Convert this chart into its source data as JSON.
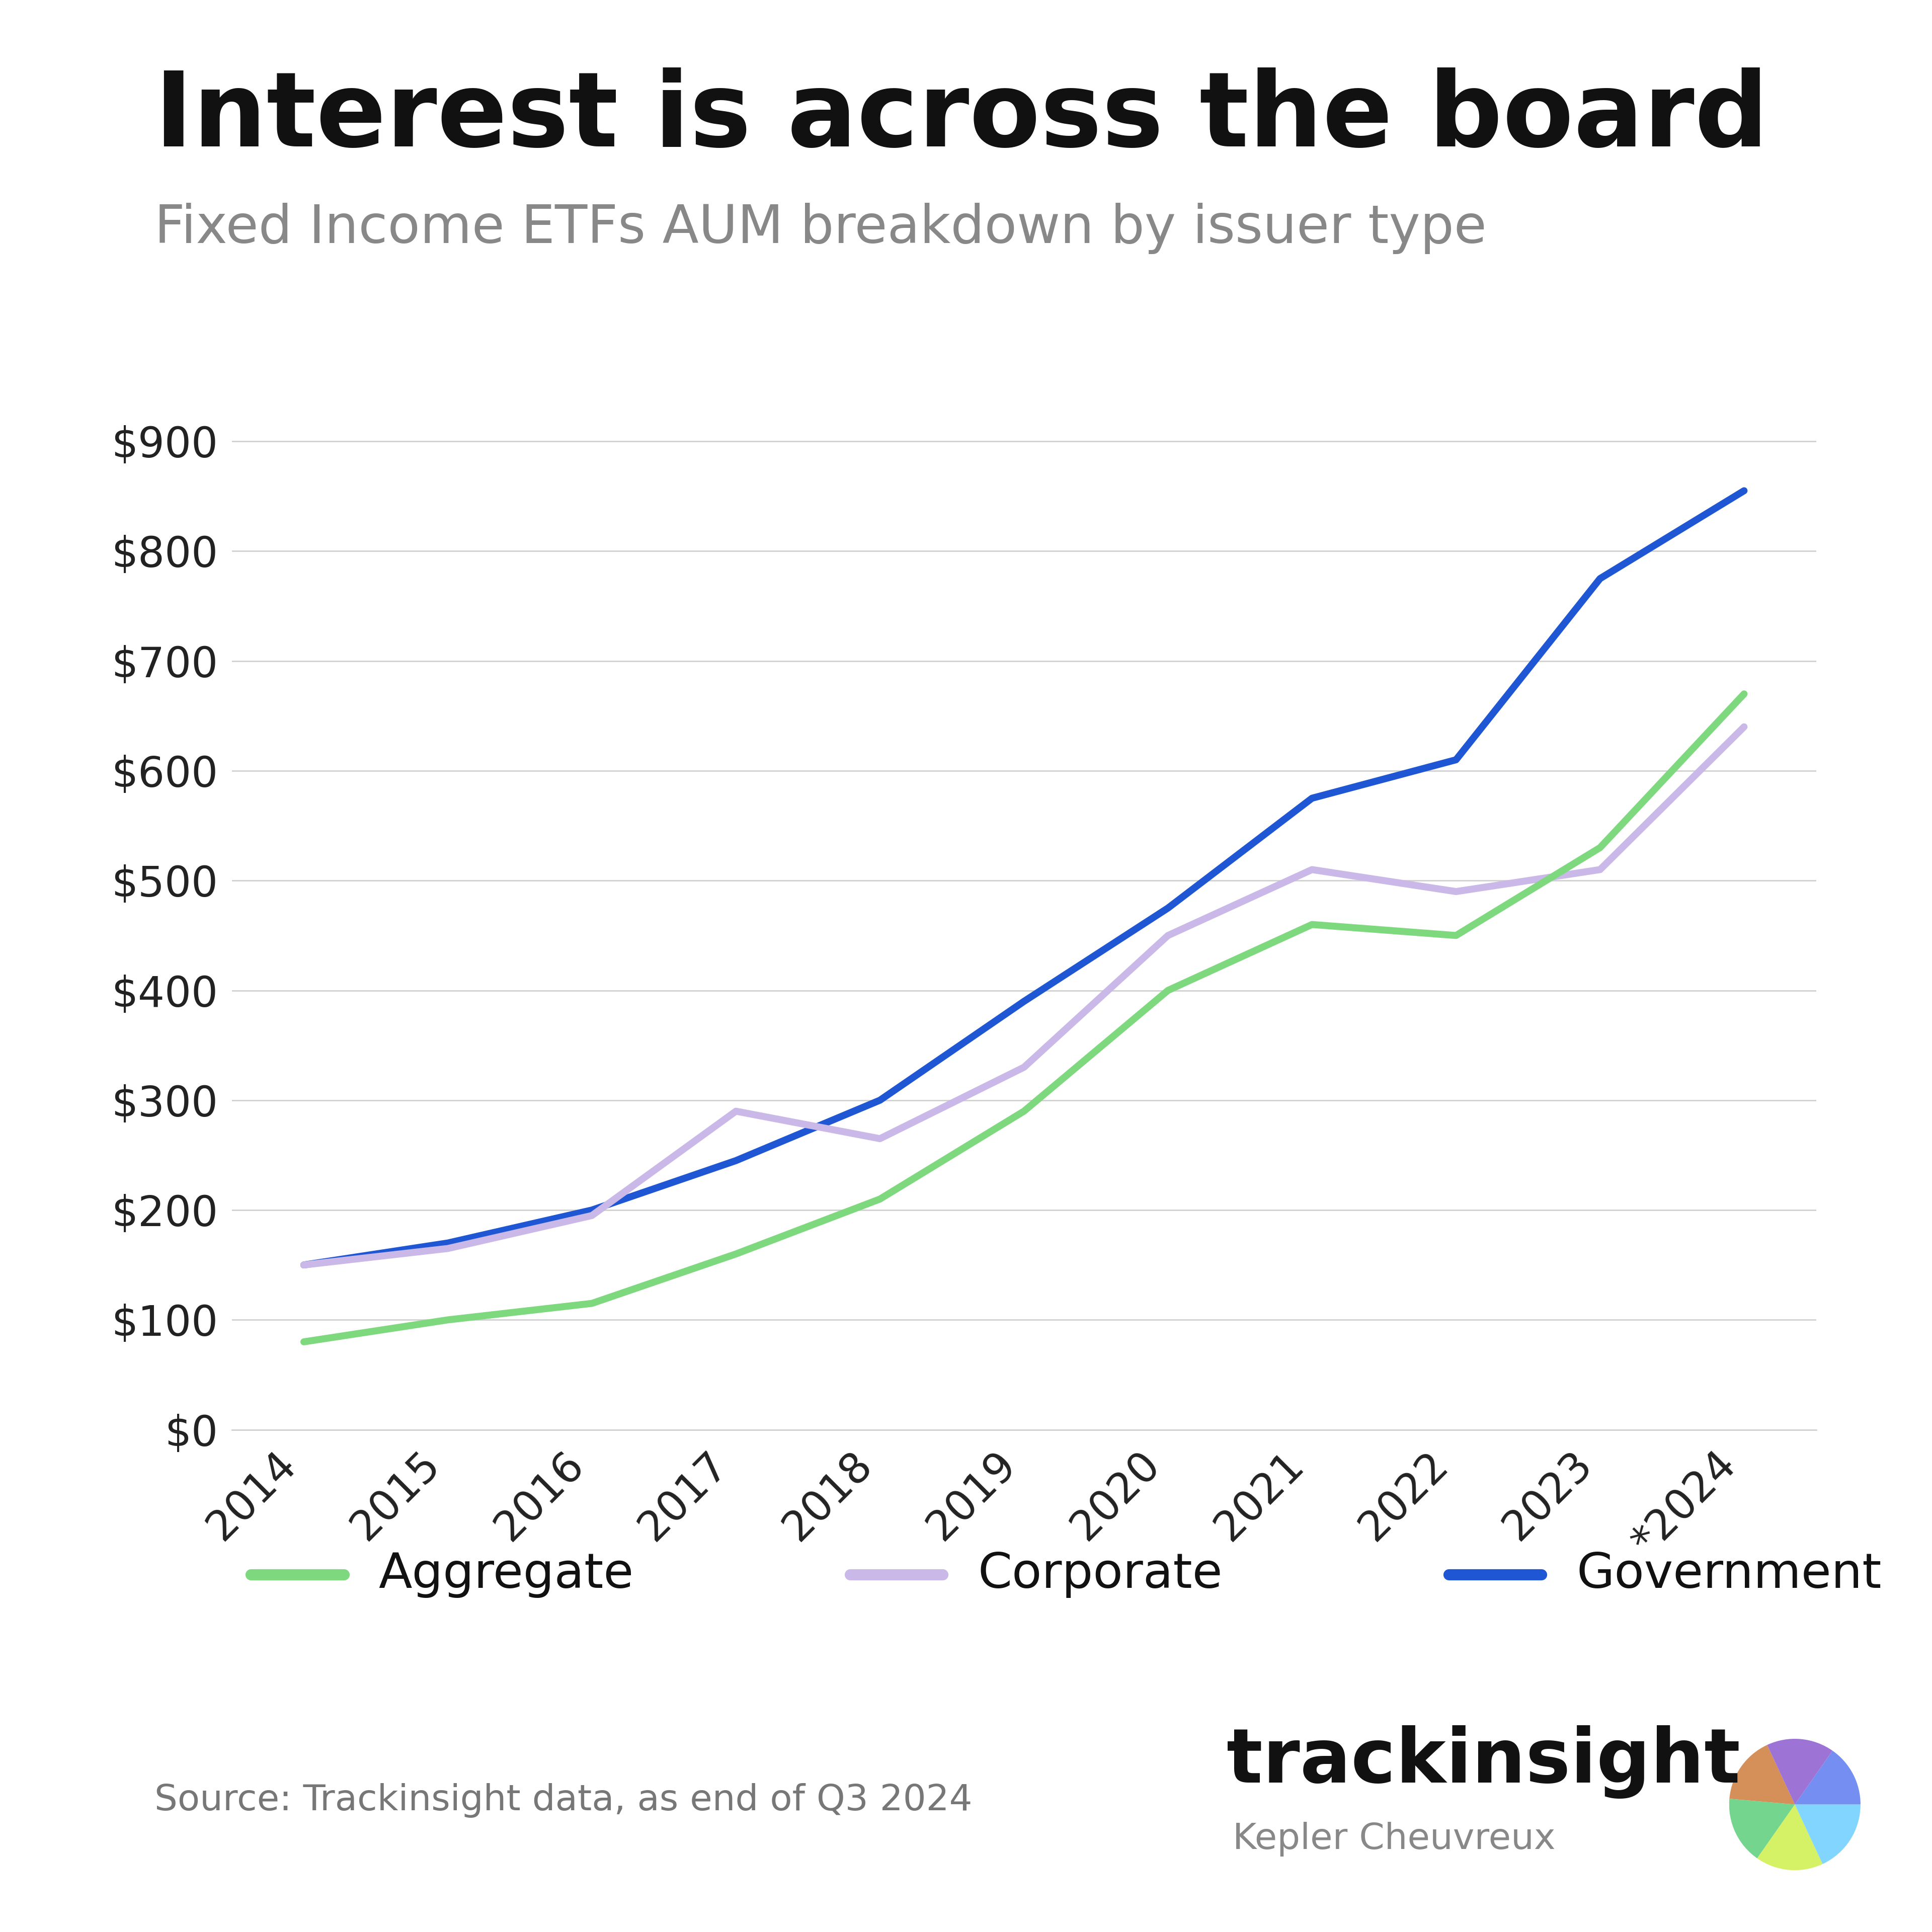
{
  "title": "Interest is across the board",
  "subtitle": "Fixed Income ETFs AUM breakdown by issuer type",
  "source": "Source: Trackinsight data, as end of Q3 2024",
  "years": [
    "2014",
    "2015",
    "2016",
    "2017",
    "2018",
    "2019",
    "2020",
    "2021",
    "2022",
    "2023",
    "*2024"
  ],
  "aggregate": [
    80,
    100,
    115,
    160,
    210,
    290,
    400,
    460,
    450,
    530,
    670
  ],
  "corporate": [
    150,
    165,
    195,
    290,
    265,
    330,
    450,
    510,
    490,
    510,
    640
  ],
  "government": [
    150,
    170,
    200,
    245,
    300,
    390,
    475,
    575,
    610,
    775,
    855
  ],
  "aggregate_color": "#7ed87e",
  "corporate_color": "#c9b8e8",
  "government_color": "#1e56d4",
  "background_color": "#ffffff",
  "grid_color": "#d0d0d0",
  "title_color": "#111111",
  "subtitle_color": "#888888",
  "tick_color": "#222222",
  "source_color": "#777777",
  "brand_color": "#111111",
  "brand_sub_color": "#888888",
  "line_width": 10,
  "ylim_min": 0,
  "ylim_max": 950,
  "yticks": [
    0,
    100,
    200,
    300,
    400,
    500,
    600,
    700,
    800,
    900
  ],
  "legend_entries": [
    "Aggregate",
    "Corporate",
    "Government"
  ],
  "legend_colors": [
    "#7ed87e",
    "#c9b8e8",
    "#1e56d4"
  ]
}
